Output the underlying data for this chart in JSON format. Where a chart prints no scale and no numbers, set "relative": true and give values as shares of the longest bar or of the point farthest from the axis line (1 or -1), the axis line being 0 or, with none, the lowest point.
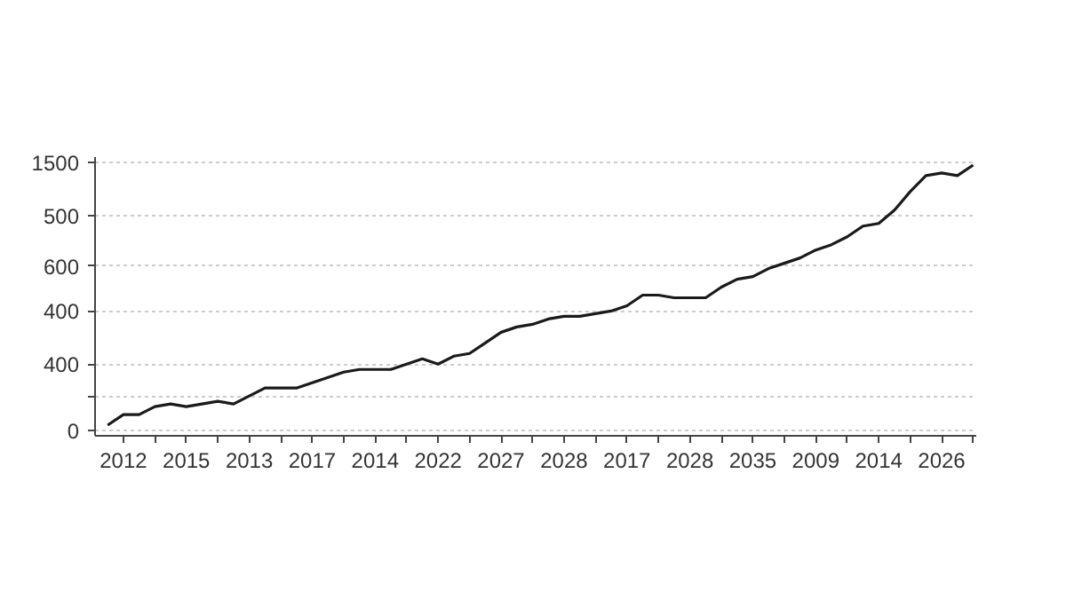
{
  "chart_data": {
    "type": "line",
    "grid": "y",
    "marker": "none",
    "line_style": "solid",
    "relative": true,
    "categories": [
      null,
      "2012",
      null,
      null,
      null,
      "2015",
      null,
      null,
      null,
      "2013",
      null,
      null,
      null,
      "2017",
      null,
      null,
      null,
      "2014",
      null,
      null,
      null,
      "2022",
      null,
      null,
      null,
      "2027",
      null,
      null,
      null,
      "2028",
      null,
      null,
      null,
      "2017",
      null,
      null,
      null,
      "2028",
      null,
      null,
      null,
      "2035",
      null,
      null,
      null,
      "2009",
      null,
      null,
      null,
      "2014",
      null,
      null,
      null,
      "2026",
      null,
      null
    ],
    "annotations": [
      "0",
      "400",
      "400",
      "600",
      "500",
      "1500"
    ],
    "series": [
      {
        "color": "#1a1a1a",
        "values": [
          0.02,
          0.06,
          0.06,
          0.09,
          0.1,
          0.09,
          0.1,
          0.11,
          0.1,
          0.13,
          0.16,
          0.16,
          0.16,
          0.18,
          0.2,
          0.22,
          0.23,
          0.23,
          0.23,
          0.25,
          0.27,
          0.25,
          0.28,
          0.29,
          0.33,
          0.37,
          0.39,
          0.4,
          0.42,
          0.43,
          0.43,
          0.44,
          0.45,
          0.47,
          0.51,
          0.51,
          0.5,
          0.5,
          0.5,
          0.54,
          0.57,
          0.58,
          0.61,
          0.63,
          0.65,
          0.68,
          0.7,
          0.73,
          0.77,
          0.78,
          0.83,
          0.9,
          0.96,
          0.97,
          0.96,
          1
        ]
      }
    ]
  }
}
